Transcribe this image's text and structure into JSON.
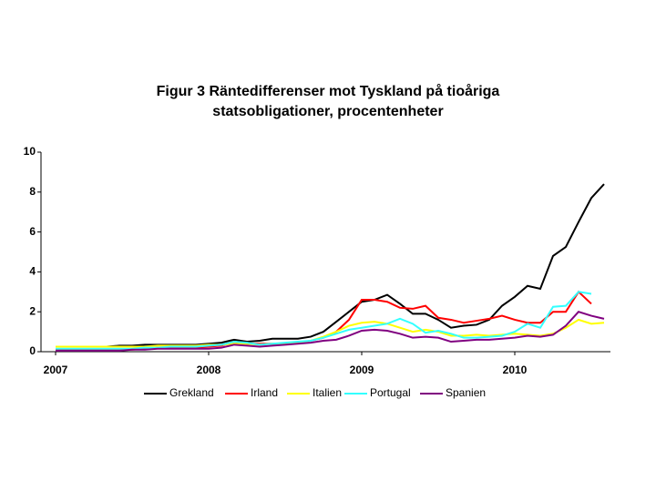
{
  "chart_data": {
    "type": "line",
    "title": "Figur 3 Räntedifferenser mot Tyskland på tioåriga statsobligationer, procentenheter",
    "categories": [
      "2007",
      null,
      null,
      null,
      null,
      null,
      null,
      null,
      null,
      null,
      null,
      null,
      "2008",
      null,
      null,
      null,
      null,
      null,
      null,
      null,
      null,
      null,
      null,
      null,
      "2009",
      null,
      null,
      null,
      null,
      null,
      null,
      null,
      null,
      null,
      null,
      null,
      "2010",
      null,
      null,
      null,
      null,
      null,
      null,
      null
    ],
    "series": [
      {
        "name": "Grekland",
        "color": "#000000",
        "values": [
          0.25,
          0.25,
          0.25,
          0.25,
          0.25,
          0.3,
          0.3,
          0.35,
          0.35,
          0.35,
          0.35,
          0.35,
          0.4,
          0.45,
          0.6,
          0.5,
          0.55,
          0.65,
          0.65,
          0.65,
          0.75,
          1.0,
          1.5,
          2.0,
          2.5,
          2.6,
          2.85,
          2.4,
          1.9,
          1.9,
          1.6,
          1.2,
          1.3,
          1.35,
          1.6,
          2.3,
          2.75,
          3.3,
          3.15,
          4.8,
          5.25,
          6.5,
          7.7,
          8.4
        ]
      },
      {
        "name": "Irland",
        "color": "#ff0000",
        "values": [
          0.1,
          0.1,
          0.1,
          0.1,
          0.1,
          0.1,
          0.1,
          0.15,
          0.2,
          0.2,
          0.2,
          0.2,
          0.25,
          0.3,
          0.5,
          0.4,
          0.4,
          0.4,
          0.4,
          0.45,
          0.55,
          0.7,
          1.0,
          1.6,
          2.6,
          2.6,
          2.5,
          2.2,
          2.15,
          2.3,
          1.7,
          1.6,
          1.45,
          1.55,
          1.65,
          1.8,
          1.6,
          1.45,
          1.45,
          2.0,
          2.0,
          3.0,
          2.4,
          null
        ]
      },
      {
        "name": "Italien",
        "color": "#ffff00",
        "values": [
          0.25,
          0.25,
          0.25,
          0.25,
          0.25,
          0.25,
          0.25,
          0.25,
          0.3,
          0.3,
          0.3,
          0.3,
          0.35,
          0.35,
          0.4,
          0.4,
          0.35,
          0.4,
          0.4,
          0.45,
          0.55,
          0.75,
          1.0,
          1.3,
          1.45,
          1.5,
          1.4,
          1.2,
          1.0,
          1.1,
          1.0,
          0.8,
          0.8,
          0.85,
          0.8,
          0.85,
          0.9,
          0.85,
          0.8,
          0.9,
          1.2,
          1.6,
          1.4,
          1.45
        ]
      },
      {
        "name": "Portugal",
        "color": "#33ffff",
        "values": [
          0.15,
          0.15,
          0.15,
          0.15,
          0.15,
          0.15,
          0.15,
          0.2,
          0.2,
          0.25,
          0.25,
          0.25,
          0.3,
          0.35,
          0.5,
          0.45,
          0.35,
          0.4,
          0.45,
          0.5,
          0.55,
          0.7,
          0.9,
          1.1,
          1.2,
          1.3,
          1.4,
          1.65,
          1.4,
          0.95,
          1.05,
          0.9,
          0.7,
          0.7,
          0.75,
          0.8,
          1.0,
          1.4,
          1.2,
          2.25,
          2.3,
          3.0,
          2.9,
          null
        ]
      },
      {
        "name": "Spanien",
        "color": "#800080",
        "values": [
          0.05,
          0.05,
          0.05,
          0.05,
          0.05,
          0.05,
          0.1,
          0.1,
          0.15,
          0.15,
          0.15,
          0.15,
          0.15,
          0.2,
          0.35,
          0.3,
          0.25,
          0.3,
          0.35,
          0.4,
          0.45,
          0.55,
          0.6,
          0.8,
          1.05,
          1.1,
          1.05,
          0.9,
          0.7,
          0.75,
          0.7,
          0.5,
          0.55,
          0.6,
          0.6,
          0.65,
          0.7,
          0.8,
          0.75,
          0.85,
          1.3,
          2.0,
          1.8,
          1.65
        ]
      }
    ],
    "ylim": [
      0,
      10
    ],
    "yticks": [
      0,
      2,
      4,
      6,
      8,
      10
    ],
    "grid": false,
    "legend": "bottom"
  }
}
